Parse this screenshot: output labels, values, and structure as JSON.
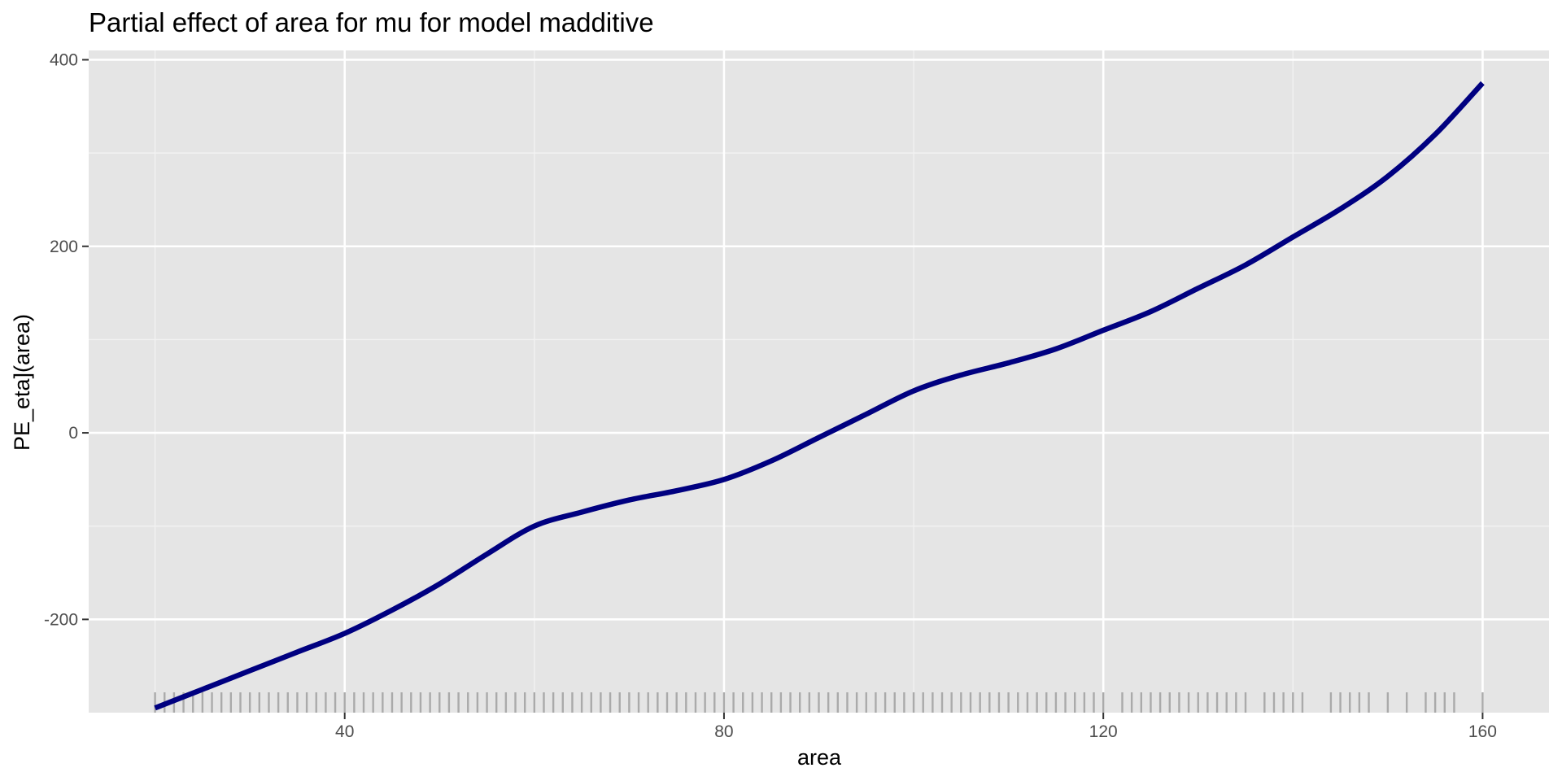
{
  "chart_data": {
    "type": "line",
    "title": "Partial effect of area for mu for model madditive",
    "xlabel": "area",
    "ylabel": "PE_eta](area)",
    "xlim": [
      13,
      167
    ],
    "ylim": [
      -300,
      410
    ],
    "x_ticks": [
      40,
      80,
      120,
      160
    ],
    "y_ticks": [
      -200,
      0,
      200,
      400
    ],
    "x_tick_labels": [
      "40",
      "80",
      "120",
      "160"
    ],
    "y_tick_labels": [
      "-200",
      "0",
      "200",
      "400"
    ],
    "grid": true,
    "legend": "none",
    "series": [
      {
        "x": [
          20,
          25,
          30,
          35,
          40,
          45,
          50,
          55,
          60,
          65,
          70,
          75,
          80,
          85,
          90,
          95,
          100,
          105,
          110,
          115,
          120,
          125,
          130,
          135,
          140,
          145,
          150,
          155,
          160
        ],
        "values": [
          -295,
          -275,
          -255,
          -235,
          -215,
          -190,
          -162,
          -130,
          -100,
          -85,
          -72,
          -62,
          -50,
          -30,
          -5,
          20,
          45,
          62,
          75,
          90,
          110,
          130,
          155,
          180,
          210,
          240,
          275,
          320,
          375
        ]
      }
    ],
    "rug_x": [
      20,
      21,
      22,
      23,
      24,
      25,
      26,
      27,
      28,
      29,
      30,
      31,
      32,
      33,
      34,
      35,
      36,
      37,
      38,
      39,
      40,
      41,
      42,
      43,
      44,
      45,
      46,
      47,
      48,
      49,
      50,
      51,
      52,
      53,
      54,
      55,
      56,
      57,
      58,
      59,
      60,
      61,
      62,
      63,
      64,
      65,
      66,
      67,
      68,
      69,
      70,
      71,
      72,
      73,
      74,
      75,
      76,
      77,
      78,
      79,
      80,
      81,
      82,
      83,
      84,
      85,
      86,
      87,
      88,
      89,
      90,
      91,
      92,
      93,
      94,
      95,
      96,
      97,
      98,
      99,
      100,
      101,
      102,
      103,
      104,
      105,
      106,
      107,
      108,
      109,
      110,
      111,
      112,
      113,
      114,
      115,
      116,
      117,
      118,
      119,
      120,
      122,
      123,
      124,
      125,
      126,
      127,
      128,
      129,
      130,
      131,
      132,
      133,
      134,
      135,
      137,
      138,
      139,
      140,
      141,
      144,
      145,
      146,
      147,
      148,
      150,
      152,
      154,
      155,
      156,
      157,
      160
    ],
    "colors": {
      "line": "#000080",
      "panel_background": "#e5e5e5",
      "grid_major": "#ffffff",
      "grid_minor": "#f2f2f2",
      "rug": "#aaaaaa",
      "axis_tick": "#333333"
    }
  }
}
